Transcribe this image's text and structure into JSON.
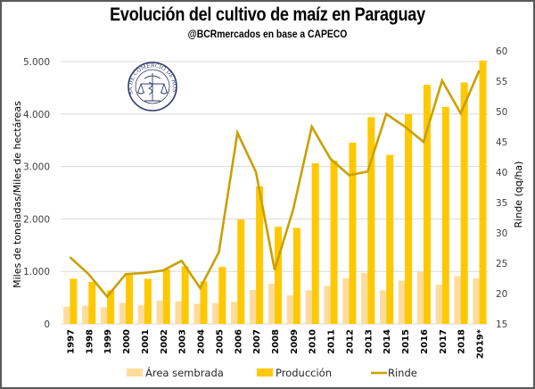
{
  "chart_data": {
    "type": "bar",
    "title": "Evolución del cultivo de maíz en Paraguay",
    "subtitle": "@BCRmercados en base a CAPECO",
    "ylabel": "Miles de toneladas/Miles de hectáreas",
    "y2label": "Rinde (qq/ha)",
    "xlabel": "",
    "ylim": [
      0,
      5000
    ],
    "y2lim": [
      15,
      60
    ],
    "yticks": [
      "0",
      "1.000",
      "2.000",
      "3.000",
      "4.000",
      "5.000"
    ],
    "yticks_values": [
      0,
      1000,
      2000,
      3000,
      4000,
      5000
    ],
    "y2ticks": [
      "15",
      "20",
      "25",
      "30",
      "35",
      "40",
      "45",
      "50",
      "55",
      "60"
    ],
    "y2ticks_values": [
      15,
      20,
      25,
      30,
      35,
      40,
      45,
      50,
      55,
      60
    ],
    "grid": true,
    "legend_position": "bottom",
    "categories": [
      "1997",
      "1998",
      "1999",
      "2000",
      "2001",
      "2002",
      "2003",
      "2004",
      "2005",
      "2006",
      "2007",
      "2008",
      "2009",
      "2010",
      "2011",
      "2012",
      "2013",
      "2014",
      "2015",
      "2016",
      "2017",
      "2018",
      "2019*"
    ],
    "series": [
      {
        "name": "Área sembrada",
        "type": "bar",
        "axis": "left",
        "color": "#FFDB9C",
        "values": [
          330,
          345,
          315,
          400,
          355,
          440,
          430,
          385,
          395,
          420,
          645,
          765,
          545,
          640,
          725,
          870,
          970,
          640,
          825,
          990,
          745,
          910,
          865
        ]
      },
      {
        "name": "Producción",
        "type": "bar",
        "axis": "left",
        "color": "#FFC800",
        "values": [
          860,
          800,
          640,
          970,
          860,
          1040,
          1095,
          810,
          1085,
          1990,
          2620,
          1850,
          1830,
          3060,
          3110,
          3455,
          3940,
          3220,
          4000,
          4555,
          4135,
          4600,
          5020
        ]
      },
      {
        "name": "Rinde",
        "type": "line",
        "axis": "right",
        "color": "#C9A000",
        "values": [
          26.0,
          23.2,
          19.5,
          23.2,
          23.4,
          23.8,
          25.4,
          20.9,
          26.8,
          46.5,
          40.0,
          23.9,
          33.9,
          47.5,
          42.2,
          39.5,
          40.1,
          49.6,
          47.5,
          45.0,
          55.1,
          49.7,
          56.8
        ]
      }
    ]
  },
  "logo": {
    "text": "BOLSA DE COMERCIO DE ROSARIO",
    "icon": "caduceus-scales-seal-icon",
    "color": "#2F3C6B"
  },
  "colors": {
    "grid": "#D9D9D9",
    "frame": "#595959"
  }
}
